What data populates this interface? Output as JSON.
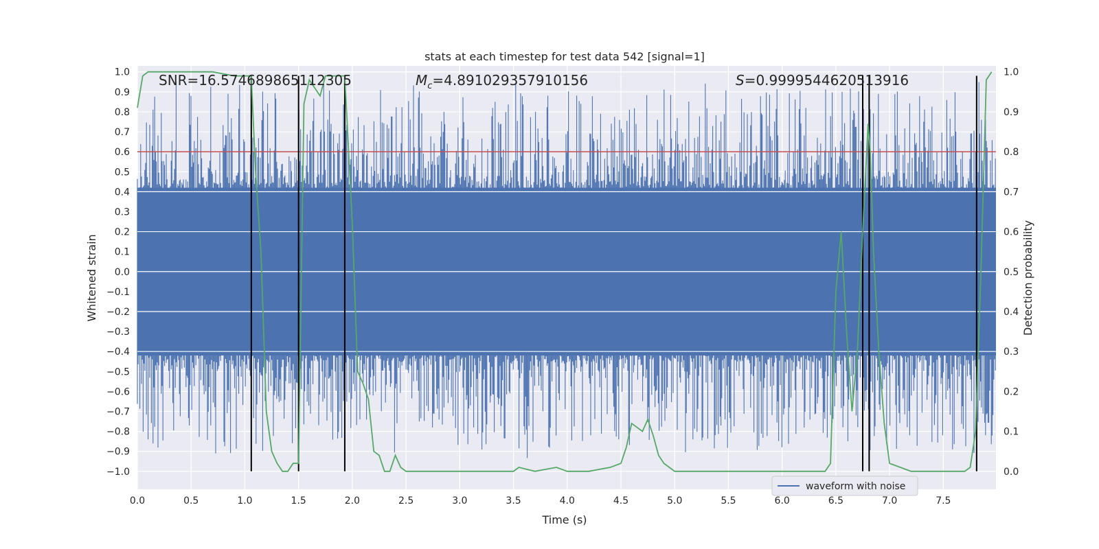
{
  "chart_data": {
    "type": "line",
    "title": "stats at each timestep for test data 542 [signal=1]",
    "xlabel": "Time (s)",
    "ylabel": "Whitened strain",
    "y2label": "Detection probability",
    "xlim": [
      0,
      7.99
    ],
    "ylim": [
      -1.09,
      1.03
    ],
    "y2lim": [
      -0.045,
      1.015
    ],
    "xticks": [
      0.0,
      0.5,
      1.0,
      1.5,
      2.0,
      2.5,
      3.0,
      3.5,
      4.0,
      4.5,
      5.0,
      5.5,
      6.0,
      6.5,
      7.0,
      7.5
    ],
    "xtick_labels": [
      "0.0",
      "0.5",
      "1.0",
      "1.5",
      "2.0",
      "2.5",
      "3.0",
      "3.5",
      "4.0",
      "4.5",
      "5.0",
      "5.5",
      "6.0",
      "6.5",
      "7.0",
      "7.5"
    ],
    "yticks": [
      1.0,
      0.9,
      0.8,
      0.7,
      0.6,
      0.5,
      0.4,
      0.3,
      0.2,
      0.1,
      0.0,
      -0.1,
      -0.2,
      -0.3,
      -0.4,
      -0.5,
      -0.6,
      -0.7,
      -0.8,
      -0.9,
      -1.0
    ],
    "ytick_labels": [
      "1.0",
      "0.9",
      "0.8",
      "0.7",
      "0.6",
      "0.5",
      "0.4",
      "0.3",
      "0.2",
      "0.1",
      "0.0",
      "−0.1",
      "−0.2",
      "−0.3",
      "−0.4",
      "−0.5",
      "−0.6",
      "−0.7",
      "−0.8",
      "−0.9",
      "−1.0"
    ],
    "y2ticks": [
      1.0,
      0.9,
      0.8,
      0.7,
      0.6,
      0.5,
      0.4,
      0.3,
      0.2,
      0.1,
      0.0
    ],
    "y2tick_labels": [
      "1.0",
      "0.9",
      "0.8",
      "0.7",
      "0.6",
      "0.5",
      "0.4",
      "0.3",
      "0.2",
      "0.1",
      "0.0"
    ],
    "annotations": {
      "snr": "SNR=16.574689865112305",
      "mc_symbol": "M",
      "mc_sub": "c",
      "mc_value": "=4.891029357910156",
      "s_symbol": "S",
      "s_value": "=0.9999544620513916"
    },
    "legend": {
      "label": "waveform with noise",
      "placement": "lower-right"
    },
    "threshold": {
      "y2": 0.8,
      "color": "#c44e52"
    },
    "vertical_markers": [
      1.06,
      1.5,
      1.93,
      6.75,
      6.81,
      7.81
    ],
    "right_grid_lines": [
      0.7,
      0.6,
      0.5,
      0.4,
      0.3
    ],
    "series": [
      {
        "name": "waveform with noise",
        "axis": "left",
        "color": "#4c72b0",
        "description": "whitened strain envelope (noise)",
        "envelope_low": -0.42,
        "envelope_high": 0.42,
        "peak_max": 0.97,
        "trough_min": -0.94
      },
      {
        "name": "detection probability",
        "axis": "right",
        "color": "#55a868",
        "x": [
          0.0,
          0.05,
          0.1,
          0.2,
          0.3,
          0.5,
          0.7,
          0.9,
          0.95,
          1.0,
          1.06,
          1.1,
          1.15,
          1.2,
          1.25,
          1.3,
          1.35,
          1.4,
          1.45,
          1.5,
          1.55,
          1.6,
          1.65,
          1.7,
          1.75,
          1.8,
          1.85,
          1.9,
          1.93,
          2.0,
          2.05,
          2.1,
          2.15,
          2.2,
          2.25,
          2.3,
          2.35,
          2.4,
          2.45,
          2.5,
          2.6,
          2.8,
          3.0,
          3.2,
          3.5,
          3.55,
          3.7,
          3.9,
          4.0,
          4.2,
          4.4,
          4.5,
          4.55,
          4.6,
          4.65,
          4.7,
          4.75,
          4.8,
          4.85,
          4.9,
          4.95,
          5.0,
          5.5,
          6.0,
          6.2,
          6.4,
          6.45,
          6.5,
          6.55,
          6.6,
          6.65,
          6.7,
          6.75,
          6.8,
          6.82,
          6.85,
          6.9,
          6.95,
          7.0,
          7.1,
          7.2,
          7.3,
          7.5,
          7.7,
          7.75,
          7.8,
          7.85,
          7.9,
          7.95
        ],
        "values": [
          0.91,
          0.99,
          1.0,
          1.0,
          1.0,
          1.0,
          1.0,
          0.99,
          0.99,
          0.99,
          0.99,
          0.75,
          0.55,
          0.15,
          0.05,
          0.02,
          0.0,
          0.0,
          0.02,
          0.02,
          0.92,
          0.98,
          0.96,
          0.94,
          0.99,
          0.99,
          0.99,
          0.99,
          0.99,
          0.62,
          0.25,
          0.22,
          0.18,
          0.05,
          0.04,
          0.0,
          0.0,
          0.04,
          0.01,
          0.0,
          0.0,
          0.0,
          0.0,
          0.0,
          0.0,
          0.01,
          0.0,
          0.01,
          0.0,
          0.0,
          0.01,
          0.02,
          0.06,
          0.12,
          0.11,
          0.1,
          0.13,
          0.09,
          0.04,
          0.02,
          0.01,
          0.0,
          0.0,
          0.0,
          0.0,
          0.0,
          0.02,
          0.45,
          0.6,
          0.35,
          0.15,
          0.3,
          0.6,
          0.87,
          0.8,
          0.55,
          0.3,
          0.12,
          0.02,
          0.01,
          0.0,
          0.0,
          0.0,
          0.0,
          0.01,
          0.1,
          0.5,
          0.98,
          1.0
        ]
      }
    ]
  }
}
